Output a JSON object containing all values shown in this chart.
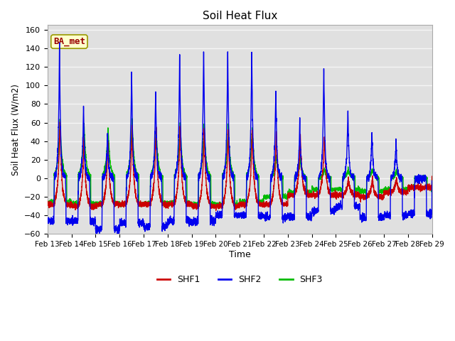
{
  "title": "Soil Heat Flux",
  "ylabel": "Soil Heat Flux (W/m2)",
  "xlabel": "Time",
  "ylim": [
    -60,
    165
  ],
  "yticks": [
    -60,
    -40,
    -20,
    0,
    20,
    40,
    60,
    80,
    100,
    120,
    140,
    160
  ],
  "start_day": 13,
  "n_days": 16,
  "colors": {
    "SHF1": "#cc0000",
    "SHF2": "#0000ee",
    "SHF3": "#00bb00"
  },
  "legend_label": "BA_met",
  "plot_bg_color": "#e0e0e0",
  "fig_bg_color": "#ffffff",
  "grid_color": "#f5f5f5",
  "line_width": 1.0
}
